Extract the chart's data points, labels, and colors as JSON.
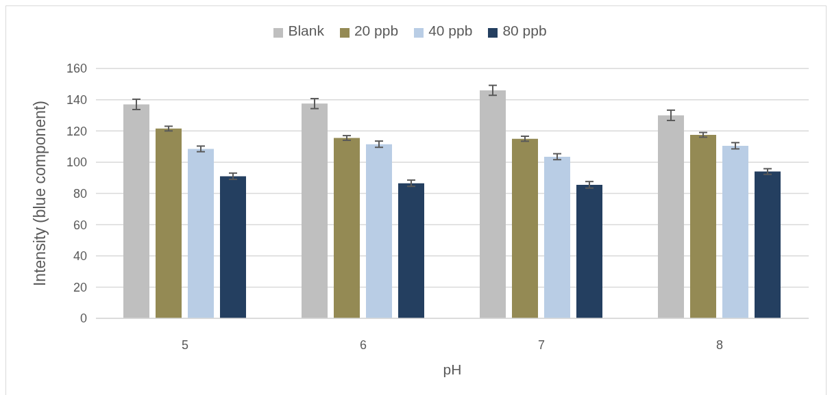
{
  "chart_data": {
    "type": "bar",
    "categories": [
      "5",
      "6",
      "7",
      "8"
    ],
    "series": [
      {
        "name": "Blank",
        "color": "#bfbfbf",
        "values": [
          137,
          137.5,
          146,
          130
        ],
        "errors": [
          3.3,
          3.2,
          3.2,
          3.3
        ]
      },
      {
        "name": "20 ppb",
        "color": "#948a54",
        "values": [
          121.5,
          115.5,
          115,
          117.5
        ],
        "errors": [
          1.5,
          1.5,
          1.6,
          1.5
        ]
      },
      {
        "name": "40 ppb",
        "color": "#b9cde5",
        "values": [
          108.5,
          111.5,
          103.5,
          110.5
        ],
        "errors": [
          1.8,
          2,
          1.9,
          2
        ]
      },
      {
        "name": "80 ppb",
        "color": "#243f60",
        "values": [
          91,
          86.5,
          85.5,
          94
        ],
        "errors": [
          2,
          2,
          2.1,
          1.8
        ]
      }
    ],
    "xlabel": "pH",
    "ylabel": "Intensity (blue component)",
    "ylim": [
      0,
      160
    ],
    "yticks": [
      0,
      20,
      40,
      60,
      80,
      100,
      120,
      140,
      160
    ],
    "grid": "y",
    "legend": "top"
  }
}
